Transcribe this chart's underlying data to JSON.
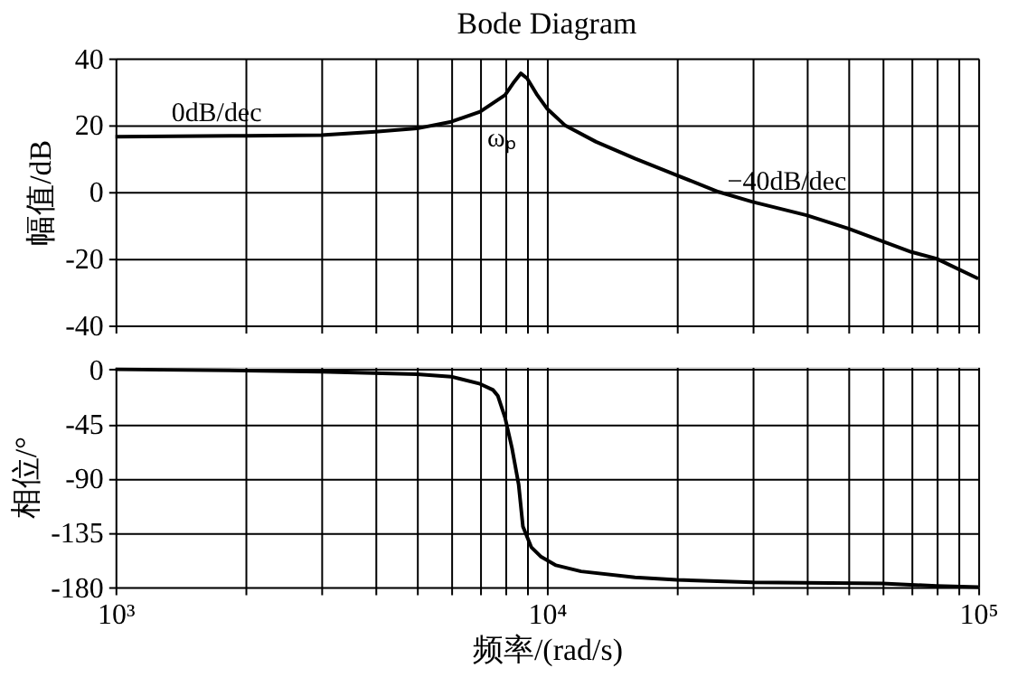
{
  "chart_data": [
    {
      "type": "line",
      "title": "Bode Diagram",
      "ylabel": "幅值/dB",
      "log": "x",
      "grid": true,
      "tick_labels": "y",
      "x": [
        1000,
        2000,
        3000,
        4000,
        5000,
        6000,
        7000,
        8000,
        8400,
        8700,
        9000,
        9500,
        10000,
        11000,
        13000,
        16000,
        20000,
        25000,
        30000,
        40000,
        50000,
        70000,
        80000,
        100000
      ],
      "series": [
        {
          "color": "#000000",
          "values": [
            16.5,
            16.8,
            17,
            18,
            19,
            21,
            24,
            29,
            33,
            35.5,
            34,
            29,
            25,
            20,
            15,
            10,
            5,
            0,
            -3,
            -7,
            -11,
            -18,
            -20,
            -26
          ]
        }
      ],
      "xlim": [
        1000,
        100000
      ],
      "xticks": [
        {
          "value": 1000,
          "label": null
        },
        {
          "value": 2000,
          "label": null
        },
        {
          "value": 3000,
          "label": null
        },
        {
          "value": 4000,
          "label": null
        },
        {
          "value": 5000,
          "label": null
        },
        {
          "value": 6000,
          "label": null
        },
        {
          "value": 7000,
          "label": null
        },
        {
          "value": 8000,
          "label": null
        },
        {
          "value": 9000,
          "label": null
        },
        {
          "value": 10000,
          "label": null
        },
        {
          "value": 20000,
          "label": null
        },
        {
          "value": 30000,
          "label": null
        },
        {
          "value": 40000,
          "label": null
        },
        {
          "value": 50000,
          "label": null
        },
        {
          "value": 60000,
          "label": null
        },
        {
          "value": 70000,
          "label": null
        },
        {
          "value": 80000,
          "label": null
        },
        {
          "value": 90000,
          "label": null
        },
        {
          "value": 100000,
          "label": null
        }
      ],
      "ylim": [
        -40,
        40
      ],
      "yticks": [
        -40,
        -20,
        0,
        20,
        40
      ],
      "annotations": [
        "0dB/dec",
        "ωₚ",
        "−40dB/dec"
      ]
    },
    {
      "type": "line",
      "xlabel": "频率/(rad/s)",
      "ylabel": "相位/°",
      "log": "x",
      "grid": true,
      "x": [
        1000,
        2000,
        3000,
        5000,
        6000,
        7000,
        7500,
        7700,
        8000,
        8300,
        8600,
        8800,
        9200,
        9700,
        10500,
        12000,
        16000,
        20000,
        30000,
        60000,
        80000,
        100000
      ],
      "series": [
        {
          "color": "#000000",
          "values": [
            0,
            -1,
            -2,
            -4,
            -6,
            -12,
            -17,
            -22,
            -40,
            -65,
            -95,
            -130,
            -147,
            -155,
            -162,
            -167,
            -172,
            -174,
            -176,
            -177,
            -179,
            -180
          ]
        }
      ],
      "xlim": [
        1000,
        100000
      ],
      "xticks": [
        {
          "value": 1000,
          "label": "10³"
        },
        {
          "value": 2000,
          "label": null
        },
        {
          "value": 3000,
          "label": null
        },
        {
          "value": 4000,
          "label": null
        },
        {
          "value": 5000,
          "label": null
        },
        {
          "value": 6000,
          "label": null
        },
        {
          "value": 7000,
          "label": null
        },
        {
          "value": 8000,
          "label": null
        },
        {
          "value": 9000,
          "label": null
        },
        {
          "value": 10000,
          "label": "10⁴"
        },
        {
          "value": 20000,
          "label": null
        },
        {
          "value": 30000,
          "label": null
        },
        {
          "value": 40000,
          "label": null
        },
        {
          "value": 50000,
          "label": null
        },
        {
          "value": 60000,
          "label": null
        },
        {
          "value": 70000,
          "label": null
        },
        {
          "value": 80000,
          "label": null
        },
        {
          "value": 90000,
          "label": null
        },
        {
          "value": 100000,
          "label": "10⁵"
        }
      ],
      "ylim": [
        -180,
        2
      ],
      "yticks": [
        -180,
        -135,
        -90,
        -45,
        0
      ]
    }
  ]
}
